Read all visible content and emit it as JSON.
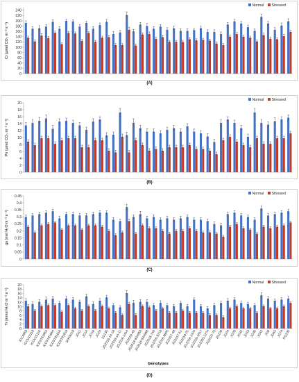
{
  "colors": {
    "normal": "#4472C4",
    "stressed": "#C0392B",
    "error_bar": "#4a4a4a",
    "axis": "#999999"
  },
  "chart_data": [
    {
      "type": "bar",
      "panel": "(A)",
      "ylabel": "Ci (µmol CO₂ m⁻² s⁻¹)",
      "ylim": [
        0,
        250
      ],
      "yticks": [
        0,
        20,
        40,
        60,
        80,
        100,
        120,
        140,
        160,
        180,
        200,
        220,
        240
      ],
      "legend": [
        "Normal",
        "Stressed"
      ],
      "legend_position": "top-right",
      "show_x_labels": false,
      "categories": [
        "ICC4958",
        "ICCV10118",
        "ICCV15116",
        "ICCV181663",
        "ICCV181664",
        "ICCV191616",
        "ICCV191618",
        "JAKI9218",
        "JG11",
        "JG14",
        "JG16",
        "JG24",
        "JG130",
        "JG2016-14-18",
        "JG2016-14-11",
        "JG2016-1414",
        "JG2016-45",
        "JG2016-634958",
        "JG2016-634968",
        "JG2016-743",
        "JG2016-9218",
        "JG2016-9605",
        "JG2017-48",
        "JG2017-51",
        "JG2018-01",
        "JG2018-1424",
        "JG2018-1817",
        "JG2020-2274",
        "JG2022-75",
        "JG226",
        "JG24",
        "JG28",
        "JG32",
        "JG33",
        "JG36",
        "JG42",
        "JG6",
        "JG63",
        "JG74",
        "PG205"
      ],
      "series": [
        {
          "name": "Normal",
          "values": [
            192,
            170,
            172,
            178,
            196,
            170,
            200,
            198,
            178,
            192,
            170,
            184,
            196,
            150,
            156,
            222,
            160,
            186,
            180,
            170,
            178,
            166,
            172,
            162,
            162,
            165,
            172,
            158,
            158,
            150,
            186,
            198,
            190,
            176,
            162,
            215,
            190,
            166,
            182,
            198
          ],
          "errors": [
            8,
            8,
            10,
            8,
            8,
            8,
            6,
            6,
            8,
            6,
            8,
            8,
            10,
            10,
            8,
            12,
            8,
            8,
            10,
            8,
            8,
            8,
            8,
            8,
            8,
            6,
            8,
            8,
            8,
            8,
            8,
            8,
            8,
            8,
            8,
            10,
            8,
            8,
            10,
            10
          ]
        },
        {
          "name": "Stressed",
          "values": [
            136,
            122,
            144,
            135,
            155,
            112,
            154,
            152,
            124,
            154,
            120,
            136,
            138,
            108,
            108,
            166,
            106,
            148,
            150,
            132,
            138,
            120,
            120,
            120,
            130,
            126,
            128,
            125,
            114,
            108,
            140,
            150,
            140,
            136,
            122,
            146,
            132,
            130,
            142,
            158
          ],
          "errors": [
            6,
            6,
            8,
            6,
            6,
            6,
            6,
            6,
            6,
            6,
            6,
            6,
            6,
            6,
            6,
            10,
            6,
            6,
            8,
            6,
            6,
            6,
            6,
            6,
            6,
            6,
            6,
            6,
            6,
            6,
            6,
            6,
            6,
            6,
            6,
            8,
            6,
            6,
            6,
            6
          ]
        }
      ]
    },
    {
      "type": "bar",
      "panel": "(B)",
      "ylabel": "Pn (µmol CO₂ m⁻² s⁻¹)",
      "ylim": [
        0,
        20
      ],
      "yticks": [
        0,
        2,
        4,
        6,
        8,
        10,
        12,
        14,
        16,
        18,
        20
      ],
      "legend": [
        "Normal",
        "Stressed"
      ],
      "legend_position": "top-right",
      "show_x_labels": false,
      "categories": [
        "ICC4958",
        "ICCV10118",
        "ICCV15116",
        "ICCV181663",
        "ICCV181664",
        "ICCV191616",
        "ICCV191618",
        "JAKI9218",
        "JG11",
        "JG14",
        "JG16",
        "JG24",
        "JG130",
        "JG2016-14-18",
        "JG2016-14-11",
        "JG2016-1414",
        "JG2016-45",
        "JG2016-634958",
        "JG2016-634968",
        "JG2016-743",
        "JG2016-9218",
        "JG2016-9605",
        "JG2017-48",
        "JG2017-51",
        "JG2018-01",
        "JG2018-1424",
        "JG2018-1817",
        "JG2020-2274",
        "JG2022-75",
        "JG226",
        "JG24",
        "JG28",
        "JG32",
        "JG33",
        "JG36",
        "JG42",
        "JG6",
        "JG63",
        "JG74",
        "PG205"
      ],
      "series": [
        {
          "name": "Normal",
          "values": [
            13.5,
            14.2,
            14.8,
            15.5,
            12.5,
            14.6,
            14.8,
            14.2,
            13.5,
            12.2,
            14.6,
            15.2,
            10.6,
            10.8,
            17.2,
            10.7,
            14.2,
            12.7,
            11.7,
            11.7,
            11.2,
            12.2,
            12.7,
            11.7,
            13.2,
            11.7,
            11.2,
            10.3,
            8.7,
            14.2,
            15.2,
            14.2,
            12.7,
            10.2,
            17.2,
            14.2,
            13.7,
            14.7,
            15.2,
            15.7
          ],
          "errors": [
            0.8,
            1.0,
            1.0,
            1.0,
            1.0,
            0.8,
            0.8,
            0.8,
            0.8,
            0.8,
            0.8,
            0.8,
            0.8,
            0.8,
            1.2,
            0.8,
            1.2,
            0.8,
            0.8,
            0.8,
            0.8,
            0.8,
            0.8,
            0.8,
            0.8,
            0.8,
            0.8,
            0.8,
            0.8,
            1.0,
            0.8,
            0.8,
            0.8,
            0.8,
            1.2,
            1.0,
            0.8,
            1.0,
            0.8,
            0.8
          ]
        },
        {
          "name": "Stressed",
          "values": [
            8.8,
            7.8,
            9.8,
            9.8,
            8.2,
            9.2,
            9.8,
            9.8,
            7.2,
            7.2,
            9.2,
            9.2,
            6.2,
            5.7,
            10.2,
            5.7,
            9.2,
            7.8,
            6.2,
            6.7,
            6.2,
            7.2,
            7.2,
            7.2,
            7.8,
            6.7,
            6.7,
            6.2,
            5.2,
            9.2,
            10.2,
            8.8,
            7.8,
            7.2,
            9.8,
            8.2,
            8.2,
            9.8,
            9.8,
            11.2
          ],
          "errors": [
            0.6,
            0.6,
            0.6,
            0.6,
            0.6,
            0.6,
            0.6,
            0.6,
            0.6,
            0.6,
            0.6,
            0.6,
            0.6,
            0.6,
            0.8,
            0.6,
            0.6,
            0.6,
            0.6,
            0.6,
            0.6,
            0.6,
            0.6,
            0.6,
            0.6,
            0.6,
            0.6,
            0.6,
            0.6,
            0.6,
            0.6,
            0.6,
            0.6,
            0.6,
            0.6,
            0.6,
            0.6,
            0.6,
            0.6,
            0.6
          ]
        }
      ]
    },
    {
      "type": "bar",
      "panel": "(C)",
      "ylabel": "gs (mol H₂O m⁻² s⁻¹)",
      "ylim": [
        0,
        0.45
      ],
      "yticks": [
        0,
        0.05,
        0.1,
        0.15,
        0.2,
        0.25,
        0.3,
        0.35,
        0.4,
        0.45
      ],
      "legend": [
        "Normal",
        "Stressed"
      ],
      "legend_position": "top-right",
      "show_x_labels": false,
      "categories": [
        "ICC4958",
        "ICCV10118",
        "ICCV15116",
        "ICCV181663",
        "ICCV181664",
        "ICCV191616",
        "ICCV191618",
        "JAKI9218",
        "JG11",
        "JG14",
        "JG16",
        "JG24",
        "JG130",
        "JG2016-14-18",
        "JG2016-14-11",
        "JG2016-1414",
        "JG2016-45",
        "JG2016-634958",
        "JG2016-634968",
        "JG2016-743",
        "JG2016-9218",
        "JG2016-9605",
        "JG2017-48",
        "JG2017-51",
        "JG2018-01",
        "JG2018-1424",
        "JG2018-1817",
        "JG2020-2274",
        "JG2022-75",
        "JG226",
        "JG24",
        "JG28",
        "JG32",
        "JG33",
        "JG36",
        "JG42",
        "JG6",
        "JG63",
        "JG74",
        "PG205"
      ],
      "series": [
        {
          "name": "Normal",
          "values": [
            0.3,
            0.31,
            0.32,
            0.33,
            0.34,
            0.29,
            0.32,
            0.32,
            0.31,
            0.31,
            0.32,
            0.33,
            0.33,
            0.28,
            0.27,
            0.37,
            0.3,
            0.32,
            0.29,
            0.3,
            0.28,
            0.29,
            0.28,
            0.29,
            0.3,
            0.28,
            0.28,
            0.27,
            0.25,
            0.24,
            0.32,
            0.33,
            0.31,
            0.3,
            0.28,
            0.36,
            0.31,
            0.32,
            0.33,
            0.34
          ],
          "errors": [
            0.015,
            0.015,
            0.015,
            0.015,
            0.015,
            0.015,
            0.015,
            0.015,
            0.015,
            0.015,
            0.015,
            0.015,
            0.015,
            0.015,
            0.015,
            0.02,
            0.015,
            0.02,
            0.015,
            0.015,
            0.015,
            0.015,
            0.015,
            0.015,
            0.015,
            0.015,
            0.015,
            0.015,
            0.015,
            0.015,
            0.015,
            0.015,
            0.015,
            0.015,
            0.015,
            0.02,
            0.015,
            0.015,
            0.015,
            0.015
          ]
        },
        {
          "name": "Stressed",
          "values": [
            0.23,
            0.19,
            0.24,
            0.25,
            0.26,
            0.21,
            0.24,
            0.24,
            0.21,
            0.24,
            0.24,
            0.23,
            0.2,
            0.17,
            0.19,
            0.27,
            0.18,
            0.24,
            0.22,
            0.22,
            0.2,
            0.18,
            0.2,
            0.2,
            0.22,
            0.2,
            0.19,
            0.19,
            0.18,
            0.16,
            0.23,
            0.25,
            0.22,
            0.21,
            0.18,
            0.23,
            0.22,
            0.23,
            0.24,
            0.26
          ],
          "errors": [
            0.01,
            0.01,
            0.01,
            0.01,
            0.01,
            0.01,
            0.01,
            0.01,
            0.01,
            0.01,
            0.01,
            0.01,
            0.01,
            0.01,
            0.01,
            0.015,
            0.01,
            0.01,
            0.01,
            0.01,
            0.01,
            0.01,
            0.01,
            0.01,
            0.01,
            0.01,
            0.01,
            0.01,
            0.01,
            0.01,
            0.01,
            0.01,
            0.01,
            0.01,
            0.01,
            0.01,
            0.01,
            0.01,
            0.01,
            0.01
          ]
        }
      ]
    },
    {
      "type": "bar",
      "panel": "(D)",
      "ylabel": "Tr (mmol H₂O m⁻² s⁻¹)",
      "xlabel": "Genotypes",
      "ylim": [
        0,
        20
      ],
      "yticks": [
        0,
        2,
        4,
        6,
        8,
        10,
        12,
        14,
        16,
        18,
        20
      ],
      "legend": [
        "Normal",
        "Stressed"
      ],
      "legend_position": "top-right",
      "show_x_labels": true,
      "categories": [
        "ICC4958",
        "ICCV10118",
        "ICCV15116",
        "ICCV181663",
        "ICCV181664",
        "ICCV191616",
        "ICCV191618",
        "JAKI9218",
        "JG11",
        "JG14",
        "JG16",
        "JG24",
        "JG130",
        "JG2016-14-18",
        "JG2016-14-11",
        "JG2016-1414",
        "JG2016-45",
        "JG2016-634958",
        "JG2016-634968",
        "JG2016-743",
        "JG2016-9218",
        "JG2016-9605",
        "JG2017-48",
        "JG2017-51",
        "JG2018-01",
        "JG2018-1424",
        "JG2018-1817",
        "JG2020-2274",
        "JG2022-75",
        "JG226",
        "JG24",
        "JG28",
        "JG32",
        "JG33",
        "JG36",
        "JG42",
        "JG6",
        "JG63",
        "JG74",
        "PG205"
      ],
      "series": [
        {
          "name": "Normal",
          "values": [
            12.7,
            11.2,
            12.2,
            13.2,
            13.7,
            11.7,
            13.7,
            13.2,
            12.2,
            14.7,
            11.2,
            12.7,
            14.2,
            10.7,
            9.7,
            16.2,
            11.7,
            12.2,
            12.2,
            10.7,
            11.7,
            10.7,
            10.2,
            11.7,
            10.2,
            13.2,
            10.2,
            9.2,
            10.7,
            11.7,
            12.7,
            13.2,
            11.7,
            11.2,
            10.7,
            15.2,
            13.7,
            12.7,
            13.2,
            13.7
          ],
          "errors": [
            1.0,
            1.0,
            1.0,
            1.2,
            1.0,
            0.8,
            1.0,
            1.0,
            0.8,
            1.0,
            1.0,
            1.0,
            1.0,
            0.8,
            0.8,
            1.2,
            1.2,
            1.0,
            1.0,
            0.8,
            1.0,
            0.8,
            0.8,
            0.8,
            0.8,
            0.8,
            0.8,
            0.8,
            0.8,
            0.8,
            1.0,
            1.0,
            0.8,
            0.8,
            0.8,
            1.2,
            1.0,
            0.8,
            1.0,
            1.0
          ]
        },
        {
          "name": "Stressed",
          "values": [
            10.2,
            8.2,
            10.2,
            10.7,
            10.7,
            7.7,
            10.7,
            9.2,
            8.2,
            10.2,
            8.2,
            10.2,
            9.2,
            7.2,
            6.2,
            11.2,
            6.2,
            10.2,
            9.7,
            8.2,
            9.2,
            7.2,
            7.2,
            8.2,
            7.2,
            7.2,
            7.2,
            6.2,
            6.2,
            5.2,
            9.2,
            10.2,
            9.2,
            9.2,
            7.2,
            10.2,
            9.2,
            9.2,
            10.2,
            11.7
          ],
          "errors": [
            0.8,
            0.6,
            0.6,
            0.6,
            0.6,
            0.6,
            0.6,
            0.6,
            0.6,
            0.6,
            0.6,
            0.6,
            0.6,
            0.6,
            0.6,
            0.8,
            0.6,
            0.6,
            0.6,
            0.6,
            0.6,
            0.6,
            0.6,
            0.6,
            0.6,
            0.6,
            0.6,
            0.6,
            0.6,
            0.6,
            0.6,
            0.6,
            0.6,
            0.6,
            0.6,
            0.6,
            0.6,
            0.6,
            0.6,
            0.6
          ]
        }
      ]
    }
  ]
}
